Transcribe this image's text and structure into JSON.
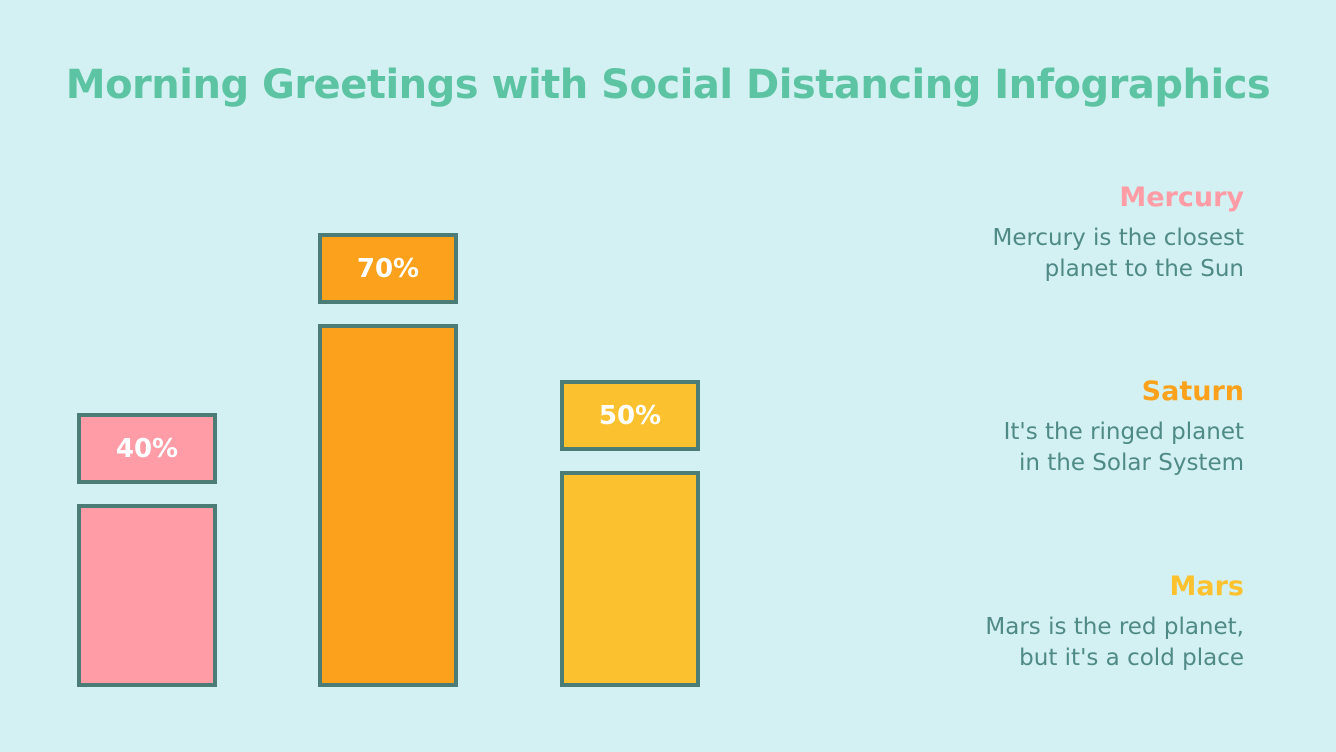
{
  "title": "Morning Greetings with Social Distancing Infographics",
  "chart_data": {
    "type": "bar",
    "categories": [
      "Mercury",
      "Saturn",
      "Mars"
    ],
    "values": [
      40,
      70,
      50
    ],
    "labels": [
      "40%",
      "70%",
      "50%"
    ],
    "colors": [
      "#ff9ca6",
      "#fba11b",
      "#fcc12f"
    ],
    "ylim": [
      0,
      100
    ]
  },
  "legend": [
    {
      "name": "Mercury",
      "desc1": "Mercury is the closest",
      "desc2": "planet to the Sun",
      "color": "#ff9ca6"
    },
    {
      "name": "Saturn",
      "desc1": "It's the ringed planet",
      "desc2": "in the Solar System",
      "color": "#fba11b"
    },
    {
      "name": "Mars",
      "desc1": "Mars is the red planet,",
      "desc2": "but it's a cold place",
      "color": "#fcc12f"
    }
  ]
}
